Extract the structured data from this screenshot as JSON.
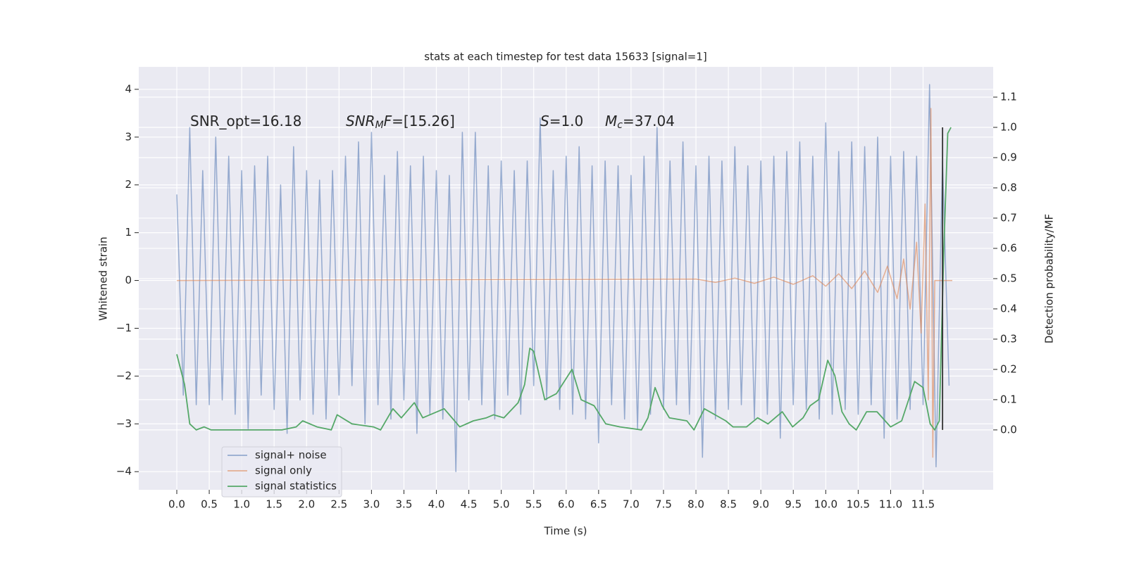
{
  "chart_data": {
    "type": "line",
    "title": "stats at each timestep for test data 15633 [signal=1]",
    "xlabel": "Time (s)",
    "ylabel": "Whitened strain",
    "y2label": "Detection probability/MF",
    "grid": true,
    "legend_loc": "lower left",
    "xlim": [
      -0.586,
      12.58
    ],
    "ylim": [
      -4.38,
      4.47
    ],
    "y2lim": [
      -0.198,
      1.2
    ],
    "xticks": [
      {
        "value": 0,
        "label": "0.0"
      },
      {
        "value": 0.5,
        "label": "0.5"
      },
      {
        "value": 1,
        "label": "1.0"
      },
      {
        "value": 1.5,
        "label": "1.5"
      },
      {
        "value": 2,
        "label": "2.0"
      },
      {
        "value": 2.5,
        "label": "2.5"
      },
      {
        "value": 3,
        "label": "3.0"
      },
      {
        "value": 3.5,
        "label": "3.5"
      },
      {
        "value": 4,
        "label": "4.0"
      },
      {
        "value": 4.5,
        "label": "4.5"
      },
      {
        "value": 5,
        "label": "5.0"
      },
      {
        "value": 5.5,
        "label": "5.5"
      },
      {
        "value": 6,
        "label": "6.0"
      },
      {
        "value": 6.5,
        "label": "6.5"
      },
      {
        "value": 7,
        "label": "7.0"
      },
      {
        "value": 7.5,
        "label": "7.5"
      },
      {
        "value": 8,
        "label": "8.0"
      },
      {
        "value": 8.5,
        "label": "8.5"
      },
      {
        "value": 9,
        "label": "9.0"
      },
      {
        "value": 9.5,
        "label": "9.5"
      },
      {
        "value": 10,
        "label": "10.0"
      },
      {
        "value": 10.5,
        "label": "10.5"
      },
      {
        "value": 11,
        "label": "11.0"
      },
      {
        "value": 11.5,
        "label": "11.5"
      }
    ],
    "yticks": [
      {
        "value": -4,
        "label": "−4"
      },
      {
        "value": -3,
        "label": "−3"
      },
      {
        "value": -2,
        "label": "−2"
      },
      {
        "value": -1,
        "label": "−1"
      },
      0,
      1,
      2,
      3,
      4
    ],
    "y2ticks": [
      {
        "value": 0,
        "label": "0.0"
      },
      {
        "value": 0.1,
        "label": "0.1"
      },
      {
        "value": 0.2,
        "label": "0.2"
      },
      {
        "value": 0.3,
        "label": "0.3"
      },
      {
        "value": 0.4,
        "label": "0.4"
      },
      {
        "value": 0.5,
        "label": "0.5"
      },
      {
        "value": 0.6,
        "label": "0.6"
      },
      {
        "value": 0.7,
        "label": "0.7"
      },
      {
        "value": 0.8,
        "label": "0.8"
      },
      {
        "value": 0.9,
        "label": "0.9"
      },
      {
        "value": 1,
        "label": "1.0"
      },
      {
        "value": 1.1,
        "label": "1.1"
      }
    ],
    "annotations": [
      [
        {
          "t": "SNR_opt=16.18"
        }
      ],
      [
        {
          "t": "SNR",
          "italic": true
        },
        {
          "t": "M",
          "italic": true,
          "sub": true
        },
        {
          "t": "F",
          "italic": true
        },
        {
          "t": "=[15.26]"
        }
      ],
      [
        {
          "t": "S",
          "italic": true
        },
        {
          "t": "=1.0"
        }
      ],
      [
        {
          "t": "M",
          "italic": true
        },
        {
          "t": "c",
          "italic": true,
          "sub": true
        },
        {
          "t": "=37.04"
        }
      ]
    ],
    "series": [
      {
        "name": "signal+ noise",
        "color": "#4c72b0",
        "alpha": 0.55,
        "x": [
          0.0,
          0.1,
          0.2,
          0.3,
          0.4,
          0.5,
          0.6,
          0.7,
          0.8,
          0.9,
          1.0,
          1.1,
          1.2,
          1.3,
          1.4,
          1.5,
          1.6,
          1.7,
          1.8,
          1.9,
          2.0,
          2.1,
          2.2,
          2.3,
          2.4,
          2.5,
          2.6,
          2.7,
          2.8,
          2.9,
          3.0,
          3.1,
          3.2,
          3.3,
          3.4,
          3.5,
          3.6,
          3.7,
          3.8,
          3.9,
          4.0,
          4.1,
          4.2,
          4.3,
          4.4,
          4.5,
          4.6,
          4.7,
          4.8,
          4.9,
          5.0,
          5.1,
          5.2,
          5.3,
          5.4,
          5.5,
          5.6,
          5.7,
          5.8,
          5.9,
          6.0,
          6.1,
          6.2,
          6.3,
          6.4,
          6.5,
          6.6,
          6.7,
          6.8,
          6.9,
          7.0,
          7.1,
          7.2,
          7.3,
          7.4,
          7.5,
          7.6,
          7.7,
          7.8,
          7.9,
          8.0,
          8.1,
          8.2,
          8.3,
          8.4,
          8.5,
          8.6,
          8.7,
          8.8,
          8.9,
          9.0,
          9.1,
          9.2,
          9.3,
          9.4,
          9.5,
          9.6,
          9.7,
          9.8,
          9.9,
          10.0,
          10.1,
          10.2,
          10.3,
          10.4,
          10.5,
          10.6,
          10.7,
          10.8,
          10.9,
          11.0,
          11.1,
          11.2,
          11.3,
          11.4,
          11.5,
          11.6,
          11.7,
          11.8,
          11.9
        ],
        "values": [
          1.8,
          -2.4,
          3.2,
          -2.6,
          2.3,
          -2.6,
          3.0,
          -2.5,
          2.6,
          -2.8,
          2.3,
          -3.1,
          2.4,
          -2.4,
          2.6,
          -2.7,
          2.0,
          -3.2,
          2.8,
          -2.5,
          2.3,
          -2.8,
          2.1,
          -2.9,
          2.3,
          -2.4,
          2.6,
          -2.2,
          2.9,
          -3.0,
          3.1,
          -2.6,
          2.2,
          -2.9,
          2.7,
          -2.5,
          2.4,
          -3.2,
          2.6,
          -2.8,
          2.3,
          -2.9,
          2.2,
          -4.0,
          3.1,
          -2.5,
          3.1,
          -2.6,
          2.4,
          -2.9,
          2.5,
          -2.4,
          2.3,
          -2.8,
          2.5,
          -2.2,
          3.4,
          -2.5,
          2.3,
          -2.7,
          2.6,
          -2.8,
          2.8,
          -2.9,
          2.4,
          -3.4,
          2.5,
          -2.6,
          2.4,
          -2.9,
          2.2,
          -3.1,
          2.6,
          -2.8,
          3.2,
          -2.7,
          2.5,
          -2.6,
          2.9,
          -2.8,
          2.4,
          -3.7,
          2.6,
          -2.9,
          2.5,
          -2.7,
          2.8,
          -2.6,
          2.4,
          -2.9,
          2.5,
          -2.8,
          2.6,
          -3.3,
          2.7,
          -2.6,
          2.9,
          -2.7,
          2.6,
          -2.9,
          3.3,
          -2.8,
          2.7,
          -2.7,
          2.9,
          -2.8,
          2.8,
          -2.6,
          3.0,
          -3.3,
          2.6,
          -2.9,
          2.7,
          -2.7,
          2.6,
          -2.6,
          4.1,
          -3.9,
          2.5,
          -2.2
        ]
      },
      {
        "name": "signal only",
        "color": "#dd8452",
        "alpha": 0.6,
        "x": [
          0.0,
          8.0,
          8.3,
          8.6,
          8.9,
          9.2,
          9.5,
          9.8,
          10.0,
          10.2,
          10.4,
          10.6,
          10.8,
          10.95,
          11.1,
          11.2,
          11.3,
          11.4,
          11.47,
          11.53,
          11.58,
          11.62,
          11.65,
          11.68,
          11.95
        ],
        "values": [
          0.0,
          0.03,
          -0.04,
          0.05,
          -0.06,
          0.07,
          -0.08,
          0.1,
          -0.12,
          0.14,
          -0.17,
          0.2,
          -0.25,
          0.3,
          -0.38,
          0.45,
          -0.6,
          0.8,
          -1.1,
          1.6,
          -2.5,
          3.6,
          -3.7,
          0.0,
          0.0
        ]
      },
      {
        "name": "signal statistics",
        "color": "#55a868",
        "alpha": 1,
        "axis": "y2",
        "x": [
          0.0,
          0.12,
          0.2,
          0.3,
          0.42,
          0.53,
          1.07,
          1.62,
          1.84,
          1.94,
          2.16,
          2.38,
          2.47,
          2.7,
          3.03,
          3.14,
          3.33,
          3.46,
          3.66,
          3.79,
          4.12,
          4.36,
          4.57,
          4.77,
          4.88,
          5.04,
          5.26,
          5.36,
          5.44,
          5.5,
          5.67,
          5.85,
          6.09,
          6.23,
          6.43,
          6.61,
          6.83,
          7.16,
          7.26,
          7.37,
          7.48,
          7.59,
          7.86,
          7.97,
          8.13,
          8.46,
          8.57,
          8.78,
          8.95,
          9.11,
          9.33,
          9.49,
          9.65,
          9.76,
          9.89,
          10.03,
          10.14,
          10.25,
          10.36,
          10.47,
          10.63,
          10.79,
          11.0,
          11.17,
          11.37,
          11.5,
          11.61,
          11.68,
          11.75,
          11.82,
          11.88,
          11.93
        ],
        "values": [
          0.25,
          0.15,
          0.02,
          0.0,
          0.01,
          0.0,
          0.0,
          0.0,
          0.01,
          0.03,
          0.01,
          0.0,
          0.05,
          0.02,
          0.01,
          0.0,
          0.07,
          0.04,
          0.09,
          0.04,
          0.07,
          0.01,
          0.03,
          0.04,
          0.05,
          0.04,
          0.09,
          0.15,
          0.27,
          0.26,
          0.1,
          0.12,
          0.2,
          0.1,
          0.08,
          0.02,
          0.01,
          0.0,
          0.04,
          0.14,
          0.08,
          0.04,
          0.03,
          0.0,
          0.07,
          0.03,
          0.01,
          0.01,
          0.04,
          0.02,
          0.06,
          0.01,
          0.04,
          0.08,
          0.1,
          0.23,
          0.18,
          0.06,
          0.02,
          0.0,
          0.06,
          0.06,
          0.01,
          0.03,
          0.16,
          0.14,
          0.02,
          0.0,
          0.03,
          0.6,
          0.98,
          1.0
        ]
      }
    ],
    "vlines": [
      {
        "x": 11.8,
        "ymin": 0,
        "ymax": 1,
        "axis": "y2",
        "color": "#333333"
      }
    ]
  }
}
